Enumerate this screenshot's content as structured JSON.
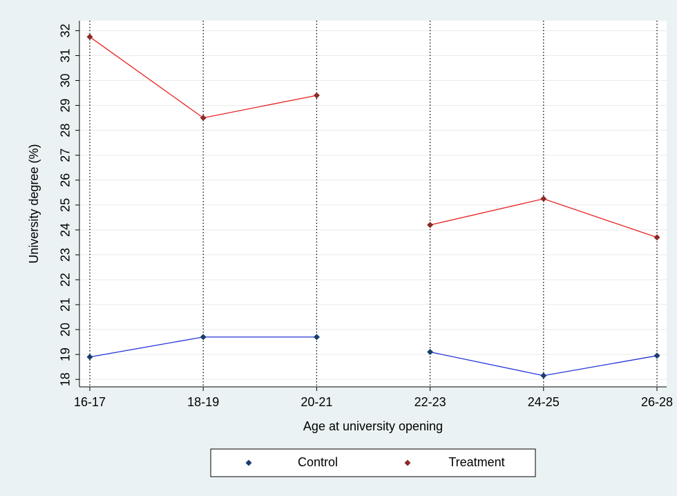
{
  "chart_data": {
    "type": "line",
    "y_axis_label": "University degree (%)",
    "x_axis_label": "Age at university opening",
    "categories": [
      "16-17",
      "18-19",
      "20-21",
      "22-23",
      "24-25",
      "26-28"
    ],
    "series": [
      {
        "name": "Control",
        "color": "#2433d6",
        "marker_color": "#1a3d6e",
        "values": [
          18.9,
          19.7,
          19.7,
          19.1,
          18.15,
          18.95
        ]
      },
      {
        "name": "Treatment",
        "color": "#e8201f",
        "marker_color": "#8b2a2a",
        "values": [
          31.75,
          28.5,
          29.4,
          24.2,
          25.25,
          23.7
        ]
      }
    ],
    "gap_after": [
      2
    ],
    "ylim": [
      17.7,
      32.4
    ],
    "yticks": [
      18,
      19,
      20,
      21,
      22,
      23,
      24,
      25,
      26,
      27,
      28,
      29,
      30,
      31,
      32
    ],
    "grid": true,
    "x_grid_dotted": true,
    "legend": "bottom"
  }
}
